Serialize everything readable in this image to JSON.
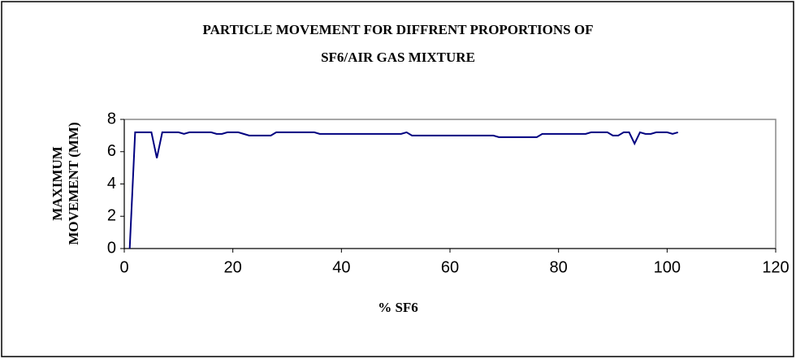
{
  "chart_data": {
    "type": "line",
    "title": [
      "PARTICLE MOVEMENT FOR DIFFRENT PROPORTIONS OF",
      "SF6/AIR GAS MIXTURE"
    ],
    "x_label": "% SF6",
    "y_label": [
      "MAXIMUM",
      "MOVEMENT (MM)"
    ],
    "series": [
      {
        "color": "#000080",
        "x": [
          1,
          2,
          5,
          6,
          7,
          10,
          11,
          12,
          16,
          17,
          18,
          19,
          21,
          22,
          23,
          27,
          28,
          35,
          36,
          51,
          52,
          53,
          68,
          69,
          76,
          77,
          85,
          86,
          89,
          90,
          91,
          92,
          93,
          94,
          95,
          96,
          97,
          98,
          100,
          101,
          102
        ],
        "values": [
          0,
          7.2,
          7.2,
          5.6,
          7.2,
          7.2,
          7.1,
          7.2,
          7.2,
          7.1,
          7.1,
          7.2,
          7.2,
          7.1,
          7.0,
          7.0,
          7.2,
          7.2,
          7.1,
          7.1,
          7.2,
          7.0,
          7.0,
          6.9,
          6.9,
          7.1,
          7.1,
          7.2,
          7.2,
          7.0,
          7.0,
          7.2,
          7.2,
          6.5,
          7.2,
          7.1,
          7.1,
          7.2,
          7.2,
          7.1,
          7.2
        ]
      }
    ],
    "xlim": [
      0,
      120
    ],
    "xticks": [
      0,
      20,
      40,
      60,
      80,
      100,
      120
    ],
    "ylim": [
      0,
      8
    ],
    "yticks": [
      0,
      2,
      4,
      6,
      8
    ],
    "grid": false
  }
}
